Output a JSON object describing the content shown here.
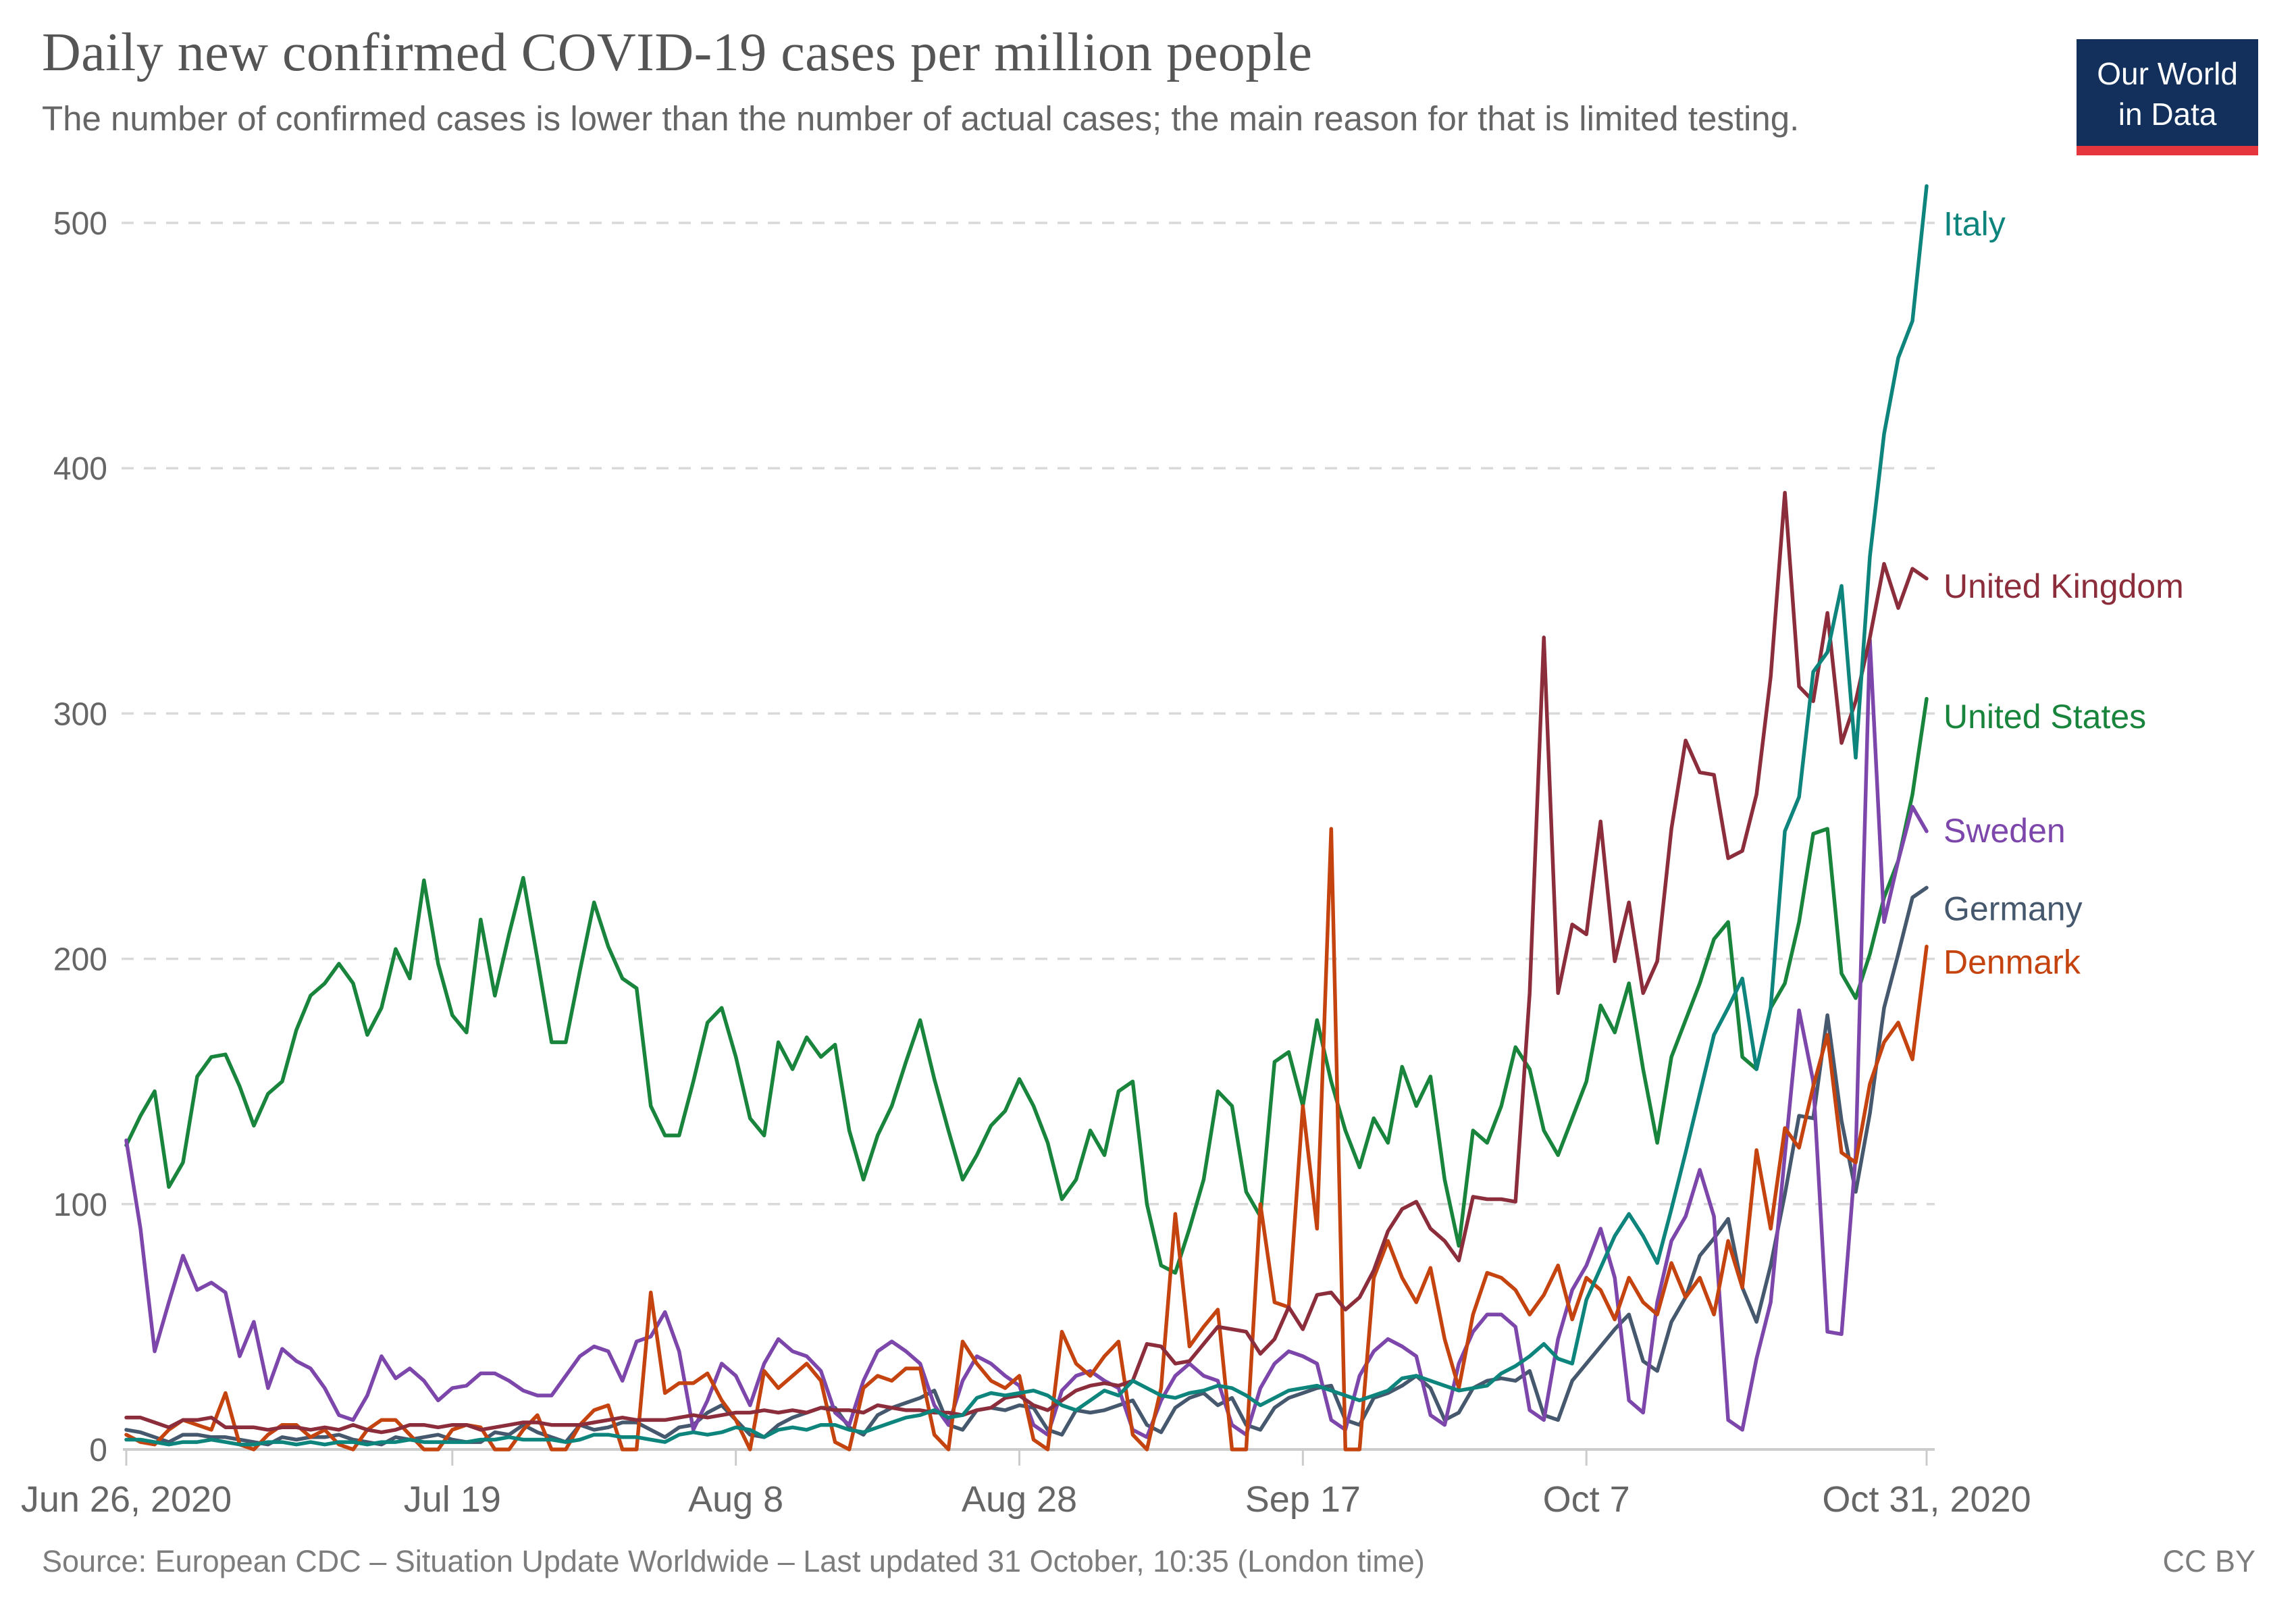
{
  "header": {
    "title": "Daily new confirmed COVID-19 cases per million people",
    "subtitle": "The number of confirmed cases is lower than the number of actual cases; the main reason for that is limited testing."
  },
  "logo": {
    "line1": "Our World",
    "line2": "in Data",
    "bg": "#12305b",
    "accent": "#e5353d"
  },
  "footer": {
    "source": "Source: European CDC – Situation Update Worldwide – Last updated 31 October, 10:35 (London time)",
    "license": "CC BY"
  },
  "colors": {
    "title_text": "#555555",
    "subtitle_text": "#666666",
    "axis_text": "#666666",
    "grid": "#d9d9d9",
    "axis_line": "#cccccc",
    "footer_text": "#7d7d7d"
  },
  "chart_data": {
    "type": "line",
    "title": "Daily new confirmed COVID-19 cases per million people",
    "xlabel": "",
    "ylabel": "",
    "x_start": "Jun 26, 2020",
    "x_end": "Oct 31, 2020",
    "num_days": 128,
    "ylim": [
      0,
      520
    ],
    "y_ticks": [
      0,
      100,
      200,
      300,
      400,
      500
    ],
    "grid": "horizontal dashed",
    "legend_position": "labels at right end of lines",
    "x_ticks": [
      {
        "label": "Jun 26, 2020",
        "day": 0
      },
      {
        "label": "Jul 19",
        "day": 23
      },
      {
        "label": "Aug 8",
        "day": 43
      },
      {
        "label": "Aug 28",
        "day": 63
      },
      {
        "label": "Sep 17",
        "day": 83
      },
      {
        "label": "Oct 7",
        "day": 103
      },
      {
        "label": "Oct 31, 2020",
        "day": 127
      }
    ],
    "series": [
      {
        "name": "United States",
        "color": "#18843c",
        "label_dy": 30,
        "values": [
          124,
          136,
          146,
          107,
          117,
          152,
          160,
          161,
          148,
          132,
          145,
          150,
          171,
          185,
          190,
          198,
          190,
          169,
          180,
          204,
          192,
          232,
          198,
          177,
          170,
          216,
          185,
          210,
          233,
          200,
          166,
          166,
          195,
          223,
          205,
          192,
          188,
          140,
          128,
          128,
          150,
          174,
          180,
          160,
          135,
          128,
          166,
          155,
          168,
          160,
          165,
          130,
          110,
          128,
          140,
          158,
          175,
          151,
          130,
          110,
          120,
          132,
          138,
          151,
          140,
          125,
          102,
          110,
          130,
          120,
          146,
          150,
          100,
          75,
          72,
          90,
          110,
          146,
          140,
          105,
          95,
          158,
          162,
          140,
          175,
          150,
          130,
          115,
          135,
          125,
          156,
          140,
          152,
          110,
          83,
          130,
          125,
          140,
          164,
          155,
          130,
          120,
          135,
          150,
          181,
          170,
          190,
          155,
          125,
          160,
          175,
          190,
          208,
          215,
          160,
          155,
          180,
          190,
          215,
          251,
          253,
          194,
          184,
          202,
          225,
          240,
          267,
          306
        ]
      },
      {
        "name": "Germany",
        "color": "#45586e",
        "label_dy": 35,
        "values": [
          8,
          7,
          5,
          3,
          6,
          6,
          5,
          5,
          4,
          3,
          2,
          5,
          4,
          5,
          5,
          6,
          4,
          3,
          2,
          5,
          4,
          5,
          6,
          4,
          3,
          3,
          7,
          6,
          10,
          7,
          5,
          3,
          10,
          8,
          9,
          11,
          11,
          8,
          5,
          9,
          10,
          15,
          18,
          12,
          6,
          5,
          10,
          13,
          15,
          17,
          17,
          9,
          6,
          14,
          17,
          19,
          21,
          24,
          10,
          8,
          16,
          17,
          16,
          18,
          17,
          8,
          6,
          16,
          15,
          16,
          18,
          20,
          10,
          7,
          17,
          21,
          23,
          18,
          21,
          10,
          8,
          17,
          21,
          23,
          25,
          26,
          12,
          10,
          21,
          23,
          26,
          30,
          25,
          12,
          15,
          25,
          28,
          29,
          28,
          32,
          14,
          12,
          28,
          35,
          42,
          49,
          55,
          36,
          32,
          52,
          62,
          79,
          86,
          94,
          66,
          52,
          75,
          104,
          136,
          135,
          177,
          134,
          105,
          137,
          180,
          202,
          225,
          229
        ]
      },
      {
        "name": "Sweden",
        "color": "#7c46ab",
        "label_dy": 3,
        "values": [
          126,
          90,
          40,
          60,
          79,
          65,
          68,
          64,
          38,
          52,
          25,
          41,
          36,
          33,
          25,
          14,
          12,
          22,
          38,
          29,
          33,
          28,
          20,
          25,
          26,
          31,
          31,
          28,
          24,
          22,
          22,
          30,
          38,
          42,
          40,
          28,
          44,
          46,
          56,
          40,
          8,
          20,
          35,
          30,
          18,
          35,
          45,
          40,
          38,
          32,
          15,
          10,
          28,
          40,
          44,
          40,
          35,
          18,
          10,
          28,
          38,
          35,
          30,
          26,
          10,
          6,
          24,
          30,
          32,
          28,
          25,
          8,
          5,
          20,
          30,
          35,
          30,
          28,
          10,
          6,
          25,
          35,
          40,
          38,
          35,
          12,
          8,
          30,
          40,
          45,
          42,
          38,
          14,
          10,
          35,
          48,
          55,
          55,
          50,
          16,
          12,
          45,
          65,
          75,
          90,
          70,
          20,
          15,
          60,
          85,
          95,
          114,
          95,
          12,
          8,
          37,
          60,
          120,
          179,
          150,
          48,
          47,
          120,
          330,
          215,
          240,
          262,
          252
        ]
      },
      {
        "name": "Denmark",
        "color": "#c4430e",
        "label_dy": 27,
        "values": [
          6,
          3,
          2,
          8,
          12,
          10,
          8,
          23,
          2,
          0,
          6,
          10,
          10,
          5,
          8,
          2,
          0,
          8,
          12,
          12,
          6,
          0,
          0,
          8,
          10,
          9,
          0,
          0,
          8,
          14,
          0,
          0,
          10,
          16,
          18,
          0,
          0,
          64,
          23,
          27,
          27,
          31,
          20,
          12,
          0,
          32,
          25,
          30,
          35,
          28,
          3,
          0,
          25,
          30,
          28,
          33,
          33,
          6,
          0,
          44,
          35,
          28,
          25,
          30,
          4,
          0,
          48,
          35,
          30,
          38,
          44,
          6,
          0,
          25,
          96,
          42,
          50,
          57,
          0,
          0,
          100,
          60,
          58,
          140,
          90,
          253,
          0,
          0,
          70,
          85,
          70,
          60,
          74,
          45,
          25,
          55,
          72,
          70,
          65,
          55,
          63,
          75,
          53,
          70,
          65,
          53,
          70,
          60,
          55,
          76,
          62,
          70,
          55,
          85,
          66,
          122,
          90,
          131,
          123,
          148,
          169,
          121,
          117,
          149,
          166,
          174,
          159,
          205
        ]
      },
      {
        "name": "United Kingdom",
        "color": "#8c2d3c",
        "label_dy": 15,
        "values": [
          13,
          13,
          11,
          9,
          12,
          12,
          13,
          9,
          9,
          9,
          8,
          9,
          9,
          8,
          9,
          8,
          10,
          8,
          7,
          8,
          10,
          10,
          9,
          10,
          10,
          8,
          9,
          10,
          11,
          11,
          10,
          10,
          10,
          11,
          12,
          13,
          12,
          12,
          12,
          13,
          14,
          13,
          14,
          15,
          15,
          16,
          15,
          16,
          15,
          17,
          16,
          16,
          15,
          18,
          17,
          16,
          16,
          15,
          15,
          14,
          16,
          17,
          21,
          22,
          18,
          16,
          20,
          24,
          26,
          27,
          26,
          28,
          43,
          42,
          35,
          36,
          43,
          50,
          49,
          48,
          39,
          45,
          58,
          49,
          63,
          64,
          57,
          62,
          73,
          89,
          98,
          101,
          90,
          85,
          77,
          103,
          102,
          102,
          101,
          186,
          331,
          186,
          214,
          210,
          256,
          199,
          223,
          186,
          199,
          253,
          289,
          276,
          275,
          241,
          244,
          267,
          315,
          390,
          311,
          305,
          341,
          288,
          305,
          331,
          361,
          343,
          359,
          355
        ]
      },
      {
        "name": "Italy",
        "color": "#0d847c",
        "label_dy": 60,
        "values": [
          4,
          4,
          3,
          2,
          3,
          3,
          4,
          3,
          2,
          2,
          3,
          3,
          2,
          3,
          2,
          3,
          3,
          2,
          3,
          3,
          4,
          3,
          3,
          3,
          3,
          4,
          4,
          5,
          4,
          4,
          4,
          3,
          4,
          6,
          6,
          5,
          5,
          4,
          3,
          6,
          7,
          6,
          7,
          9,
          8,
          5,
          8,
          9,
          8,
          10,
          10,
          8,
          7,
          9,
          11,
          13,
          14,
          16,
          13,
          14,
          21,
          23,
          22,
          23,
          24,
          22,
          18,
          16,
          20,
          24,
          22,
          28,
          25,
          22,
          21,
          23,
          24,
          26,
          25,
          22,
          18,
          21,
          24,
          25,
          26,
          24,
          22,
          20,
          22,
          24,
          29,
          30,
          28,
          26,
          24,
          25,
          26,
          31,
          34,
          38,
          43,
          37,
          35,
          61,
          74,
          87,
          96,
          87,
          76,
          98,
          121,
          145,
          169,
          180,
          192,
          155,
          180,
          252,
          266,
          317,
          325,
          352,
          282,
          364,
          414,
          445,
          460,
          515
        ]
      }
    ]
  }
}
